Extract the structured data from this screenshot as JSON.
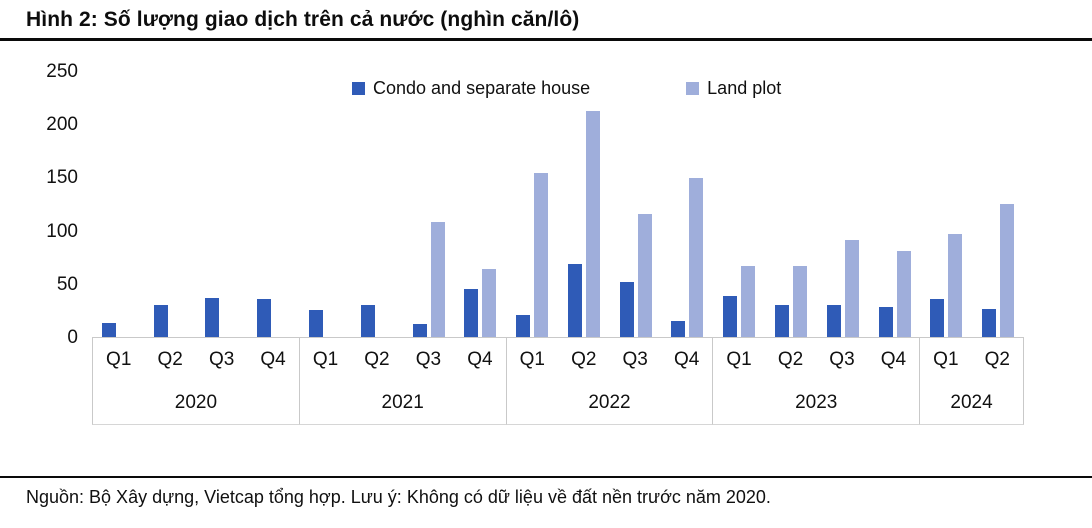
{
  "title": "Hình 2: Số lượng giao dịch trên cả nước (nghìn căn/lô)",
  "footer_note": "Nguồn: Bộ Xây dựng, Vietcap tổng hợp. Lưu ý: Không có dữ liệu về đất nền trước năm 2020.",
  "colors": {
    "condo": "#2F5BB7",
    "land": "#9FAEDB",
    "axis_border": "#C9C9C9"
  },
  "chart_data": {
    "type": "bar",
    "title": "Số lượng giao dịch trên cả nước (nghìn căn/lô)",
    "unit": "nghìn căn/lô",
    "grid": false,
    "legend_position": "top-center",
    "ylim": [
      0,
      250
    ],
    "y_ticks": [
      0,
      50,
      100,
      150,
      200,
      250
    ],
    "categories": [
      "Q1",
      "Q2",
      "Q3",
      "Q4",
      "Q1",
      "Q2",
      "Q3",
      "Q4",
      "Q1",
      "Q2",
      "Q3",
      "Q4",
      "Q1",
      "Q2",
      "Q3",
      "Q4",
      "Q1",
      "Q2"
    ],
    "group_years": [
      {
        "label": "2020",
        "span": 4
      },
      {
        "label": "2021",
        "span": 4
      },
      {
        "label": "2022",
        "span": 4
      },
      {
        "label": "2023",
        "span": 4
      },
      {
        "label": "2024",
        "span": 2
      }
    ],
    "series": [
      {
        "name": "Condo and separate house",
        "color": "#2F5BB7",
        "values": [
          13,
          30,
          37,
          36,
          25,
          30,
          12,
          45,
          21,
          69,
          52,
          15,
          39,
          30,
          30,
          28,
          36,
          26
        ]
      },
      {
        "name": "Land plot",
        "color": "#9FAEDB",
        "values": [
          null,
          null,
          null,
          null,
          null,
          null,
          108,
          64,
          154,
          212,
          116,
          149,
          67,
          67,
          91,
          81,
          97,
          125
        ]
      }
    ]
  }
}
